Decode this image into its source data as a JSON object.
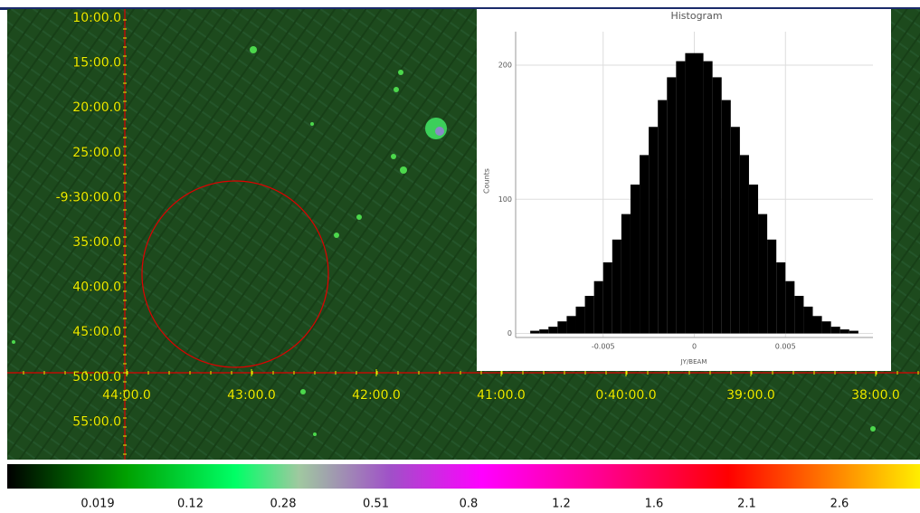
{
  "sky_view": {
    "dec_labels": [
      "10:00.0",
      "15:00.0",
      "20:00.0",
      "25:00.0",
      "-9:30:00.0",
      "35:00.0",
      "40:00.0",
      "45:00.0",
      "50:00.0",
      "55:00.0"
    ],
    "ra_labels": [
      "44:00.0",
      "43:00.0",
      "42:00.0",
      "41:00.0",
      "0:40:00.0",
      "39:00.0",
      "38:00.0"
    ]
  },
  "chart_data": {
    "type": "histogram",
    "title": "Histogram",
    "x_label": "JY/BEAM",
    "y_label": "Counts",
    "bins": [
      -0.009,
      -0.0085,
      -0.008,
      -0.0075,
      -0.007,
      -0.0065,
      -0.006,
      -0.0055,
      -0.005,
      -0.0045,
      -0.004,
      -0.0035,
      -0.003,
      -0.0025,
      -0.002,
      -0.0015,
      -0.001,
      -0.0005,
      0,
      0.0005,
      0.001,
      0.0015,
      0.002,
      0.0025,
      0.003,
      0.0035,
      0.004,
      0.0045,
      0.005,
      0.0055,
      0.006,
      0.0065,
      0.007,
      0.0075,
      0.008,
      0.0085,
      0.009
    ],
    "values": [
      2,
      3,
      5,
      9,
      13,
      20,
      28,
      39,
      53,
      70,
      89,
      111,
      133,
      154,
      174,
      191,
      203,
      209,
      209,
      203,
      191,
      174,
      154,
      133,
      111,
      89,
      70,
      53,
      39,
      28,
      20,
      13,
      9,
      5,
      3,
      2
    ],
    "color": "#000000",
    "xlim": [
      -0.0098,
      0.0098
    ],
    "xticks": [
      -0.005,
      0,
      0.005
    ],
    "ylim": [
      -3,
      225
    ],
    "yticks": [
      0,
      100,
      200
    ],
    "grid": true
  },
  "colorbar": {
    "labels": [
      "0.019",
      "0.12",
      "0.28",
      "0.51",
      "0.8",
      "1.2",
      "1.6",
      "2.1",
      "2.6"
    ]
  }
}
